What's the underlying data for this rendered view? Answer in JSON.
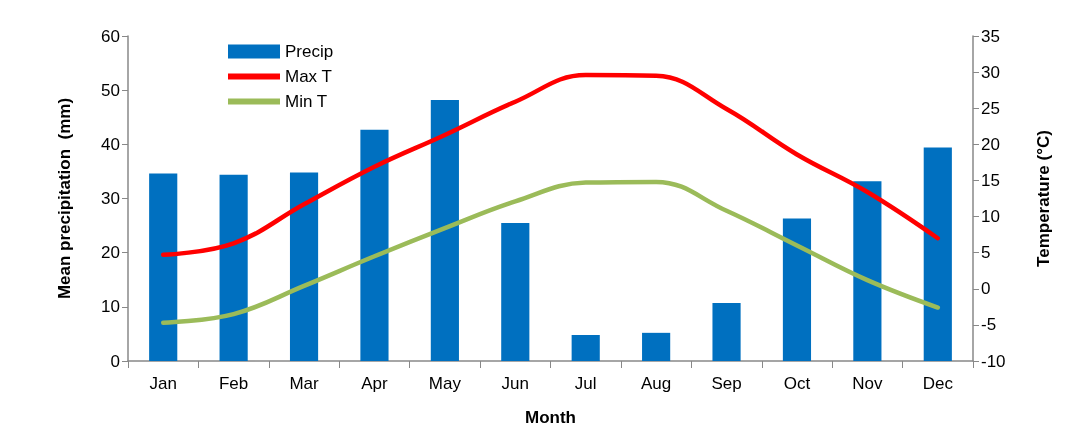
{
  "chart_data": {
    "type": "bar",
    "xlabel": "Month",
    "ylabel": "Mean precipitation  (mm)",
    "y2label": "Temperature (°C)",
    "categories": [
      "Jan",
      "Feb",
      "Mar",
      "Apr",
      "May",
      "Jun",
      "Jul",
      "Aug",
      "Sep",
      "Oct",
      "Nov",
      "Dec"
    ],
    "series": [
      {
        "name": "Precip",
        "color": "#0070c0",
        "values": [
          34.6,
          34.4,
          34.8,
          42.7,
          48.2,
          25.5,
          4.8,
          5.2,
          10.7,
          26.3,
          33.2,
          39.4
        ]
      },
      {
        "name": "Max T",
        "type": "line",
        "axis": "y2",
        "color": "#ff0000",
        "values": [
          4.7,
          6.3,
          11.7,
          16.9,
          21.3,
          25.9,
          29.6,
          29.5,
          24.9,
          18.6,
          13.4,
          7.0
        ]
      },
      {
        "name": "Min T",
        "type": "line",
        "axis": "y2",
        "color": "#9bbb59",
        "values": [
          -4.7,
          -3.5,
          0.4,
          4.5,
          8.4,
          12.1,
          14.7,
          14.8,
          10.8,
          6.0,
          1.2,
          -2.6
        ]
      }
    ],
    "ylim": [
      0,
      60
    ],
    "yticks": [
      0,
      10,
      20,
      30,
      40,
      50,
      60
    ],
    "y2lim": [
      -10,
      35
    ],
    "y2ticks": [
      -10,
      -5,
      0,
      5,
      10,
      15,
      20,
      25,
      30,
      35
    ],
    "grid": false,
    "legend": "top left",
    "marker": "none",
    "line_style": "solid"
  }
}
